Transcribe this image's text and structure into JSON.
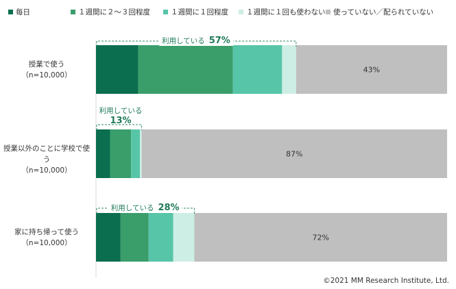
{
  "colors": {
    "daily": "#0b6e4f",
    "two_three_per_week": "#3a9e6b",
    "once_per_week": "#57c5a8",
    "less_than_weekly": "#cdeee4",
    "not_used": "#bfbfbf",
    "bracket": "#2d8a63"
  },
  "legend": [
    {
      "key": "daily",
      "label": "毎日"
    },
    {
      "key": "two_three_per_week",
      "label": "１週間に２～３回程度"
    },
    {
      "key": "once_per_week",
      "label": "１週間に１回程度"
    },
    {
      "key": "less_than_weekly",
      "label": "１週間に１回も使わない"
    },
    {
      "key": "not_used",
      "label": "使っていない／配られていない"
    }
  ],
  "chart_data": {
    "type": "bar",
    "orientation": "horizontal",
    "stacked": true,
    "xlim": [
      0,
      100
    ],
    "categories": [
      {
        "label": "授業で使う",
        "sample": "（n=10,000）"
      },
      {
        "label": "授業以外のことに学校で使う",
        "sample": "（n=10,000）"
      },
      {
        "label": "家に持ち帰って使う",
        "sample": "（n=10,000）"
      }
    ],
    "series": [
      {
        "key": "daily",
        "name": "毎日",
        "values": [
          12,
          4,
          7
        ]
      },
      {
        "key": "two_three_per_week",
        "name": "１週間に２～３回程度",
        "values": [
          27,
          6,
          8
        ]
      },
      {
        "key": "once_per_week",
        "name": "１週間に１回程度",
        "values": [
          14,
          2.5,
          7
        ]
      },
      {
        "key": "less_than_weekly",
        "name": "１週間に１回も使わない",
        "values": [
          4,
          0.5,
          6
        ]
      },
      {
        "key": "not_used",
        "name": "使っていない／配られていない",
        "values": [
          43,
          87,
          72
        ]
      }
    ],
    "not_used_labels": [
      "43%",
      "87%",
      "72%"
    ],
    "usage_totals": [
      {
        "label": "利用している",
        "pct": "57%"
      },
      {
        "label": "利用している",
        "pct": "13%"
      },
      {
        "label": "利用している",
        "pct": "28%"
      }
    ]
  },
  "copyright": "©2021 MM Research Institute, Ltd."
}
